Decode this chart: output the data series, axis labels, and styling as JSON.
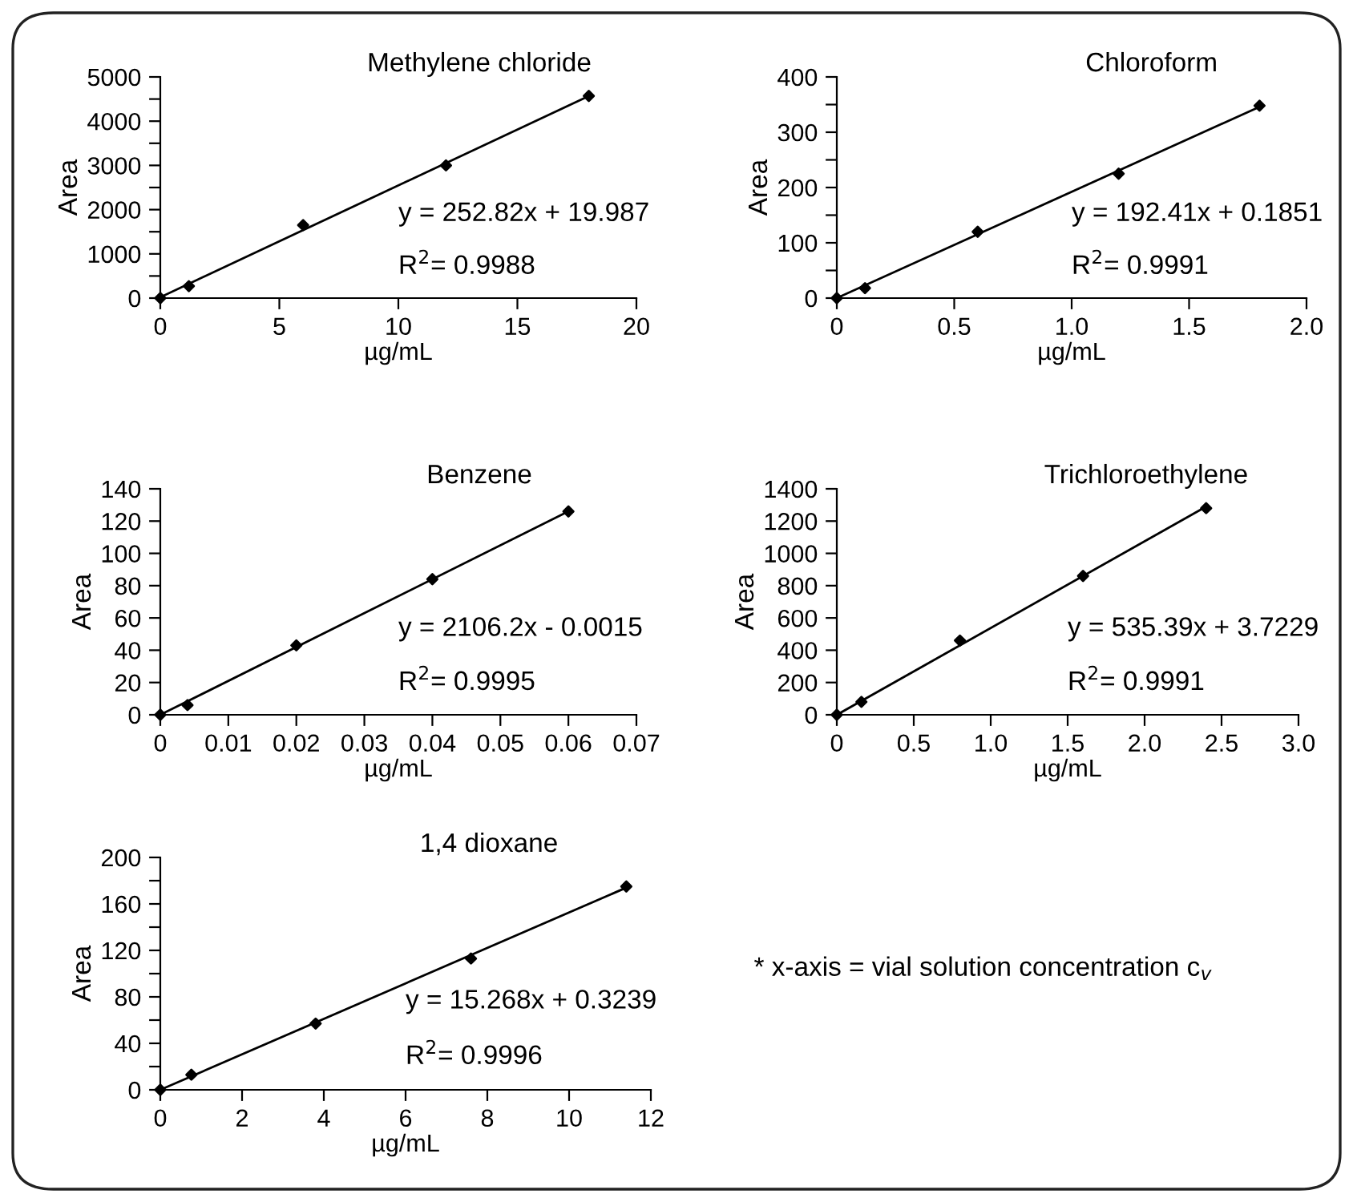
{
  "chart_data": [
    {
      "type": "scatter",
      "title": "Methylene chloride",
      "xlabel": "µg/mL",
      "ylabel": "Area",
      "xlim": [
        0,
        20
      ],
      "xticks": [
        0,
        5,
        10,
        15,
        20
      ],
      "ylim": [
        0,
        5000
      ],
      "yticks": [
        0,
        {
          "value": 500,
          "label": null
        },
        1000,
        {
          "value": 1500,
          "label": null
        },
        2000,
        {
          "value": 2500,
          "label": null
        },
        3000,
        {
          "value": 3500,
          "label": null
        },
        4000,
        {
          "value": 4500,
          "label": null
        },
        5000
      ],
      "annotations": [
        "y = 252.82x + 19.987",
        "R$^{2}$= 0.9988"
      ],
      "series": [
        {
          "marker": "diamond",
          "color": "#000000",
          "x": [
            0,
            1.2,
            6,
            12,
            18
          ],
          "values": [
            0,
            270,
            1650,
            3000,
            4570
          ]
        },
        {
          "type": "line",
          "marker": "none",
          "color": "#000000",
          "x": [
            0,
            18
          ],
          "values": [
            20,
            4570
          ]
        }
      ]
    },
    {
      "type": "scatter",
      "title": "Chloroform",
      "xlabel": "µg/mL",
      "ylabel": "Area",
      "xlim": [
        0,
        2.0
      ],
      "xticks": [
        0,
        {
          "value": 0.5,
          "label": "0.5"
        },
        {
          "value": 1.0,
          "label": "1.0"
        },
        {
          "value": 1.5,
          "label": "1.5"
        },
        {
          "value": 2.0,
          "label": "2.0"
        }
      ],
      "ylim": [
        0,
        400
      ],
      "yticks": [
        0,
        {
          "value": 50,
          "label": null
        },
        100,
        {
          "value": 150,
          "label": null
        },
        200,
        {
          "value": 250,
          "label": null
        },
        300,
        {
          "value": 350,
          "label": null
        },
        400
      ],
      "annotations": [
        "y = 192.41x + 0.1851",
        "R$^{2}$= 0.9991"
      ],
      "series": [
        {
          "marker": "diamond",
          "color": "#000000",
          "x": [
            0,
            0.12,
            0.6,
            1.2,
            1.8
          ],
          "values": [
            0,
            18,
            120,
            225,
            348
          ]
        },
        {
          "type": "line",
          "marker": "none",
          "color": "#000000",
          "x": [
            0,
            1.8
          ],
          "values": [
            0,
            346
          ]
        }
      ]
    },
    {
      "type": "scatter",
      "title": "Benzene",
      "xlabel": "µg/mL",
      "ylabel": "Area",
      "xlim": [
        0,
        0.07
      ],
      "xticks": [
        0,
        0.01,
        0.02,
        0.03,
        0.04,
        0.05,
        0.06,
        0.07
      ],
      "ylim": [
        0,
        140
      ],
      "yticks": [
        0,
        20,
        40,
        60,
        80,
        100,
        120,
        140
      ],
      "annotations": [
        "y = 2106.2x - 0.0015",
        "R$^{2}$= 0.9995"
      ],
      "series": [
        {
          "marker": "diamond",
          "color": "#000000",
          "x": [
            0,
            0.004,
            0.02,
            0.04,
            0.06
          ],
          "values": [
            0,
            6,
            43,
            84,
            126
          ]
        },
        {
          "type": "line",
          "marker": "none",
          "color": "#000000",
          "x": [
            0,
            0.06
          ],
          "values": [
            0,
            126
          ]
        }
      ]
    },
    {
      "type": "scatter",
      "title": "Trichloroethylene",
      "xlabel": "µg/mL",
      "ylabel": "Area",
      "xlim": [
        0,
        3.0
      ],
      "xticks": [
        0,
        {
          "value": 0.5,
          "label": "0.5"
        },
        {
          "value": 1.0,
          "label": "1.0"
        },
        {
          "value": 1.5,
          "label": "1.5"
        },
        {
          "value": 2.0,
          "label": "2.0"
        },
        {
          "value": 2.5,
          "label": "2.5"
        },
        {
          "value": 3.0,
          "label": "3.0"
        }
      ],
      "ylim": [
        0,
        1400
      ],
      "yticks": [
        0,
        200,
        400,
        600,
        800,
        1000,
        1200,
        1400
      ],
      "annotations": [
        "y = 535.39x + 3.7229",
        "R$^{2}$= 0.9991"
      ],
      "series": [
        {
          "marker": "diamond",
          "color": "#000000",
          "x": [
            0,
            0.16,
            0.8,
            1.6,
            2.4
          ],
          "values": [
            0,
            80,
            460,
            860,
            1280
          ]
        },
        {
          "type": "line",
          "marker": "none",
          "color": "#000000",
          "x": [
            0,
            2.4
          ],
          "values": [
            0,
            1290
          ]
        }
      ]
    },
    {
      "type": "scatter",
      "title": "1,4 dioxane",
      "xlabel": "µg/mL",
      "ylabel": "Area",
      "xlim": [
        0,
        12
      ],
      "xticks": [
        0,
        2,
        4,
        6,
        8,
        10,
        12
      ],
      "ylim": [
        0,
        200
      ],
      "yticks": [
        0,
        {
          "value": 20,
          "label": null
        },
        40,
        {
          "value": 60,
          "label": null
        },
        80,
        {
          "value": 100,
          "label": null
        },
        120,
        {
          "value": 140,
          "label": null
        },
        160,
        {
          "value": 180,
          "label": null
        },
        200
      ],
      "annotations": [
        "y = 15.268x + 0.3239",
        "R$^{2}$= 0.9996",
        "* x-axis = vial solution concentration c$_{v}$"
      ],
      "series": [
        {
          "marker": "diamond",
          "color": "#000000",
          "x": [
            0,
            0.76,
            3.8,
            7.6,
            11.4
          ],
          "values": [
            0,
            13,
            57,
            113,
            175
          ]
        },
        {
          "type": "line",
          "marker": "none",
          "color": "#000000",
          "x": [
            0,
            11.4
          ],
          "values": [
            0,
            174
          ]
        }
      ]
    }
  ]
}
